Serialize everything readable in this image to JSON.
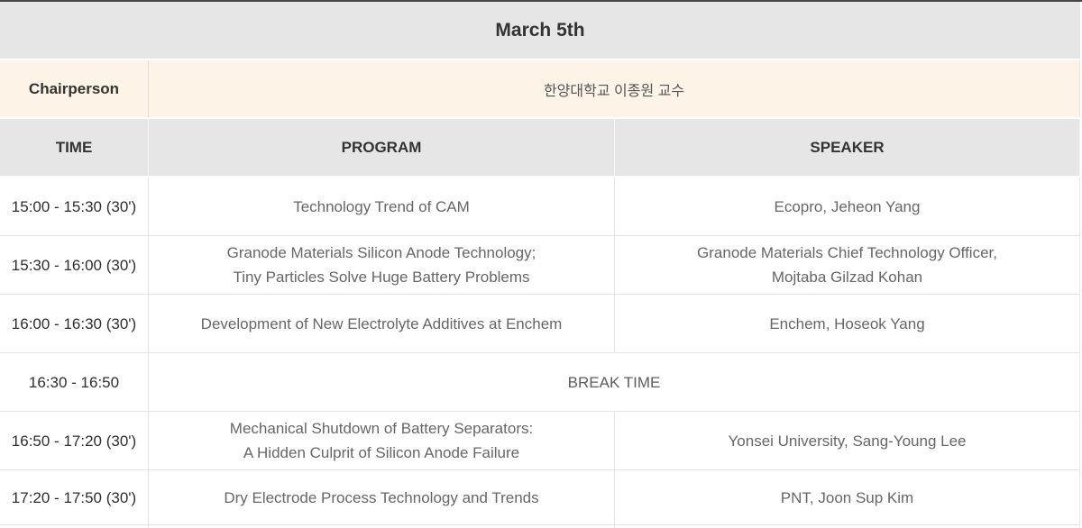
{
  "title": "March 5th",
  "chairperson": {
    "label": "Chairperson",
    "value": "한양대학교 이종원 교수"
  },
  "columns": {
    "time": "TIME",
    "program": "PROGRAM",
    "speaker": "SPEAKER"
  },
  "rows": [
    {
      "time": "15:00 - 15:30 (30')",
      "program": "Technology Trend of CAM",
      "speaker": "Ecopro, Jeheon Yang"
    },
    {
      "time": "15:30 - 16:00 (30')",
      "program": "Granode Materials Silicon Anode Technology;\nTiny Particles Solve Huge Battery Problems",
      "speaker": "Granode Materials Chief Technology Officer,\nMojtaba Gilzad Kohan"
    },
    {
      "time": "16:00 - 16:30 (30')",
      "program": "Development of New Electrolyte Additives at Enchem",
      "speaker": "Enchem, Hoseok Yang"
    },
    {
      "time": "16:30 - 16:50",
      "break_label": "BREAK TIME"
    },
    {
      "time": "16:50 - 17:20 (30')",
      "program": "Mechanical Shutdown of Battery Separators:\nA Hidden Culprit of Silicon Anode Failure",
      "speaker": "Yonsei University, Sang-Young Lee"
    },
    {
      "time": "17:20 - 17:50 (30')",
      "program": "Dry Electrode Process Technology and Trends",
      "speaker": "PNT, Joon Sup Kim"
    }
  ],
  "colors": {
    "top_bar": "#474747",
    "band_gray": "#e6e6e6",
    "band_cream": "#fdf3e7",
    "row_border": "#e4e4e4",
    "heading_text": "#333333",
    "time_text": "#2e2e2e",
    "body_text": "#666666"
  }
}
